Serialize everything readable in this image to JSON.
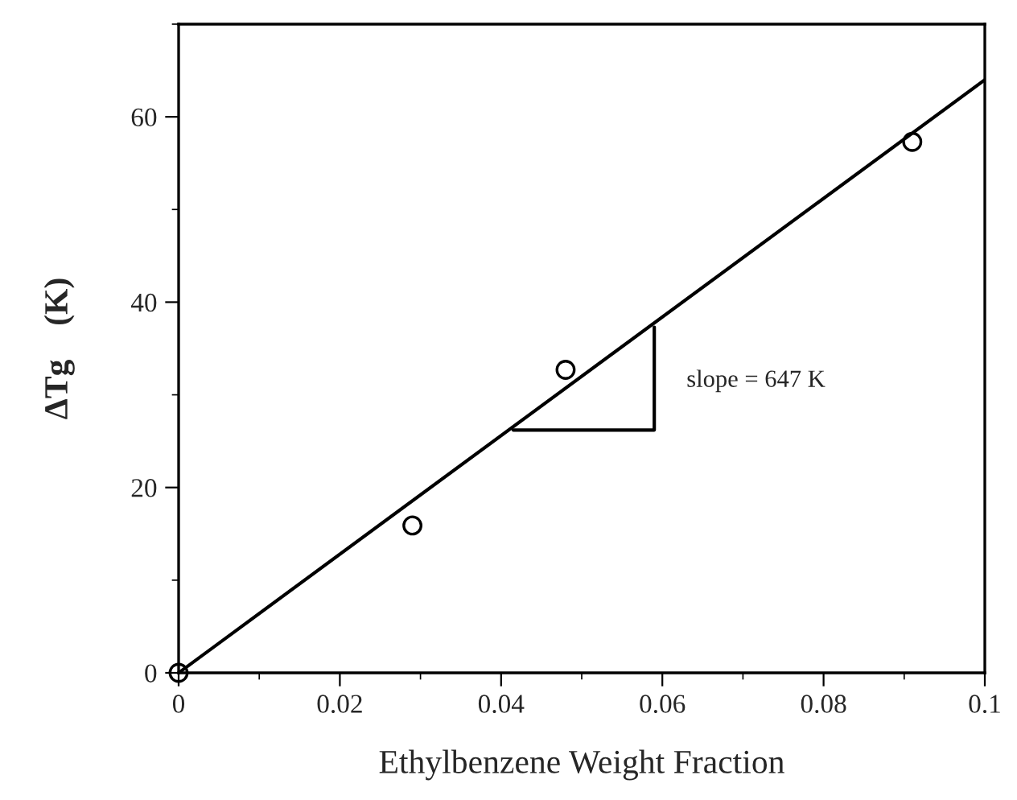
{
  "chart_data": {
    "type": "scatter",
    "xlabel": "Ethylbenzene Weight Fraction",
    "ylabel": "ΔTg    (K)",
    "xlim": [
      0,
      0.1
    ],
    "ylim": [
      0,
      70
    ],
    "xticks": [
      0,
      0.02,
      0.04,
      0.06,
      0.08,
      0.1
    ],
    "yticks": [
      0,
      20,
      40,
      60
    ],
    "grid": false,
    "legend": false,
    "series": [
      {
        "color": "#000000",
        "marker": "circle",
        "x": [
          0,
          0.029,
          0.048,
          0.091
        ],
        "values": [
          0,
          15.9,
          32.7,
          57.3
        ]
      },
      {
        "type": "line",
        "color": "#000000",
        "x": [
          0,
          0.1
        ],
        "values": [
          0,
          64
        ]
      },
      {
        "type": "line",
        "color": "#000000",
        "x": [
          0.0415,
          0.059,
          0.059
        ],
        "values": [
          26.2,
          26.2,
          37.3
        ]
      }
    ],
    "annotations": [
      "slope = 647 K"
    ]
  }
}
